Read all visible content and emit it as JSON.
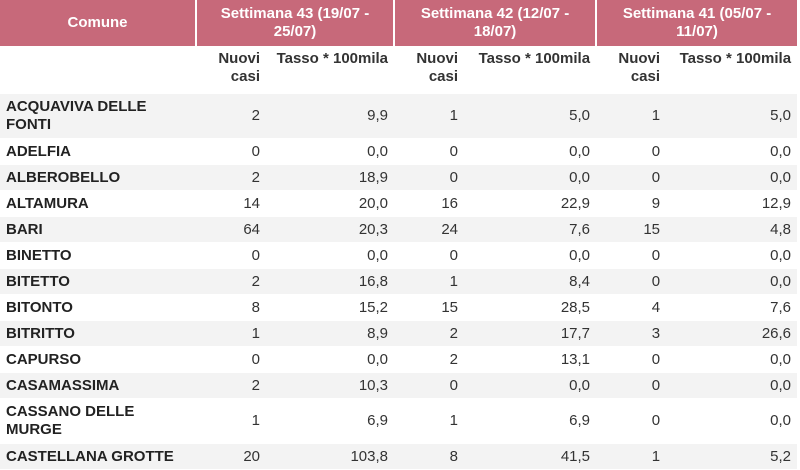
{
  "header": {
    "comune": "Comune",
    "weeks": [
      "Settimana 43 (19/07 - 25/07)",
      "Settimana 42 (12/07 - 18/07)",
      "Settimana 41 (05/07 - 11/07)"
    ],
    "nuovi_casi": "Nuovi casi",
    "tasso": "Tasso * 100mila"
  },
  "rows": [
    {
      "comune": "ACQUAVIVA DELLE FONTI",
      "w43_casi": "2",
      "w43_tasso": "9,9",
      "w42_casi": "1",
      "w42_tasso": "5,0",
      "w41_casi": "1",
      "w41_tasso": "5,0"
    },
    {
      "comune": "ADELFIA",
      "w43_casi": "0",
      "w43_tasso": "0,0",
      "w42_casi": "0",
      "w42_tasso": "0,0",
      "w41_casi": "0",
      "w41_tasso": "0,0"
    },
    {
      "comune": "ALBEROBELLO",
      "w43_casi": "2",
      "w43_tasso": "18,9",
      "w42_casi": "0",
      "w42_tasso": "0,0",
      "w41_casi": "0",
      "w41_tasso": "0,0"
    },
    {
      "comune": "ALTAMURA",
      "w43_casi": "14",
      "w43_tasso": "20,0",
      "w42_casi": "16",
      "w42_tasso": "22,9",
      "w41_casi": "9",
      "w41_tasso": "12,9"
    },
    {
      "comune": "BARI",
      "w43_casi": "64",
      "w43_tasso": "20,3",
      "w42_casi": "24",
      "w42_tasso": "7,6",
      "w41_casi": "15",
      "w41_tasso": "4,8"
    },
    {
      "comune": "BINETTO",
      "w43_casi": "0",
      "w43_tasso": "0,0",
      "w42_casi": "0",
      "w42_tasso": "0,0",
      "w41_casi": "0",
      "w41_tasso": "0,0"
    },
    {
      "comune": "BITETTO",
      "w43_casi": "2",
      "w43_tasso": "16,8",
      "w42_casi": "1",
      "w42_tasso": "8,4",
      "w41_casi": "0",
      "w41_tasso": "0,0"
    },
    {
      "comune": "BITONTO",
      "w43_casi": "8",
      "w43_tasso": "15,2",
      "w42_casi": "15",
      "w42_tasso": "28,5",
      "w41_casi": "4",
      "w41_tasso": "7,6"
    },
    {
      "comune": "BITRITTO",
      "w43_casi": "1",
      "w43_tasso": "8,9",
      "w42_casi": "2",
      "w42_tasso": "17,7",
      "w41_casi": "3",
      "w41_tasso": "26,6"
    },
    {
      "comune": "CAPURSO",
      "w43_casi": "0",
      "w43_tasso": "0,0",
      "w42_casi": "2",
      "w42_tasso": "13,1",
      "w41_casi": "0",
      "w41_tasso": "0,0"
    },
    {
      "comune": "CASAMASSIMA",
      "w43_casi": "2",
      "w43_tasso": "10,3",
      "w42_casi": "0",
      "w42_tasso": "0,0",
      "w41_casi": "0",
      "w41_tasso": "0,0"
    },
    {
      "comune": "CASSANO DELLE MURGE",
      "w43_casi": "1",
      "w43_tasso": "6,9",
      "w42_casi": "1",
      "w42_tasso": "6,9",
      "w41_casi": "0",
      "w41_tasso": "0,0"
    },
    {
      "comune": "CASTELLANA GROTTE",
      "w43_casi": "20",
      "w43_tasso": "103,8",
      "w42_casi": "8",
      "w42_tasso": "41,5",
      "w41_casi": "1",
      "w41_tasso": "5,2"
    }
  ],
  "colors": {
    "header_bg": "#c7697a",
    "header_text": "#ffffff",
    "row_alt": "#f3f3f3"
  }
}
